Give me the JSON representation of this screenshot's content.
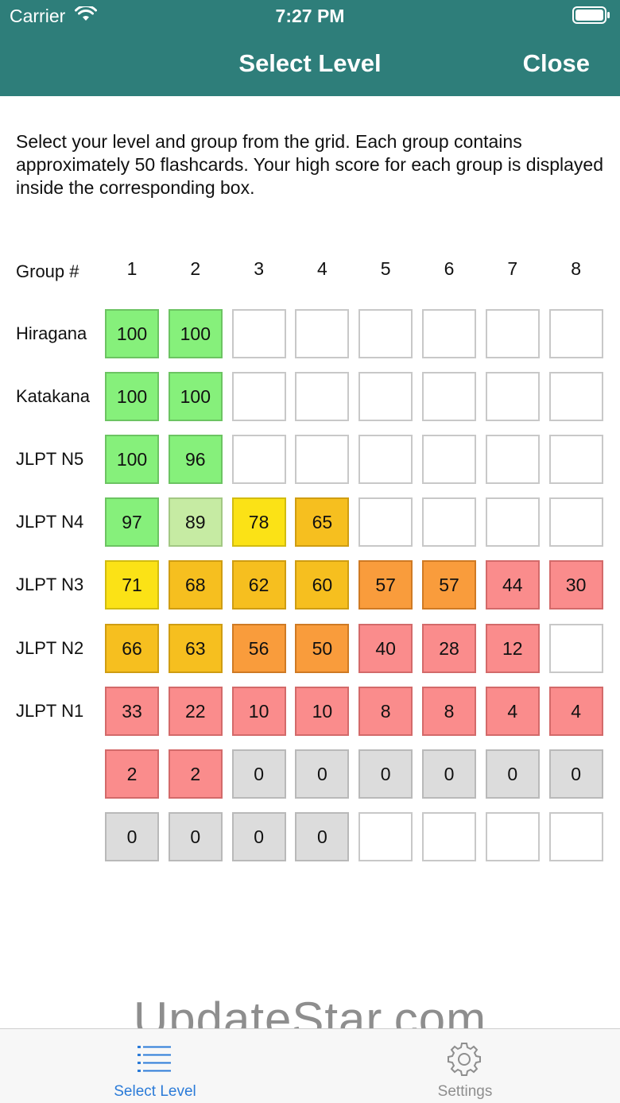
{
  "status_bar": {
    "carrier": "Carrier",
    "time": "7:27 PM"
  },
  "nav": {
    "title": "Select Level",
    "close_label": "Close"
  },
  "description": "Select your level and group from the grid. Each group contains approximately 50 flashcards. Your high score for each group is displayed inside the corresponding box.",
  "grid": {
    "header_label": "Group #",
    "columns": [
      "1",
      "2",
      "3",
      "4",
      "5",
      "6",
      "7",
      "8"
    ],
    "rows": [
      {
        "label": "Hiragana",
        "cells": [
          {
            "score": "100",
            "color": "green"
          },
          {
            "score": "100",
            "color": "green"
          },
          {
            "score": "",
            "color": "empty"
          },
          {
            "score": "",
            "color": "empty"
          },
          {
            "score": "",
            "color": "empty"
          },
          {
            "score": "",
            "color": "empty"
          },
          {
            "score": "",
            "color": "empty"
          },
          {
            "score": "",
            "color": "empty"
          }
        ]
      },
      {
        "label": "Katakana",
        "cells": [
          {
            "score": "100",
            "color": "green"
          },
          {
            "score": "100",
            "color": "green"
          },
          {
            "score": "",
            "color": "empty"
          },
          {
            "score": "",
            "color": "empty"
          },
          {
            "score": "",
            "color": "empty"
          },
          {
            "score": "",
            "color": "empty"
          },
          {
            "score": "",
            "color": "empty"
          },
          {
            "score": "",
            "color": "empty"
          }
        ]
      },
      {
        "label": "JLPT N5",
        "cells": [
          {
            "score": "100",
            "color": "green"
          },
          {
            "score": "96",
            "color": "green"
          },
          {
            "score": "",
            "color": "empty"
          },
          {
            "score": "",
            "color": "empty"
          },
          {
            "score": "",
            "color": "empty"
          },
          {
            "score": "",
            "color": "empty"
          },
          {
            "score": "",
            "color": "empty"
          },
          {
            "score": "",
            "color": "empty"
          }
        ]
      },
      {
        "label": "JLPT N4",
        "cells": [
          {
            "score": "97",
            "color": "green"
          },
          {
            "score": "89",
            "color": "lgreen"
          },
          {
            "score": "78",
            "color": "yellow"
          },
          {
            "score": "65",
            "color": "amber"
          },
          {
            "score": "",
            "color": "empty"
          },
          {
            "score": "",
            "color": "empty"
          },
          {
            "score": "",
            "color": "empty"
          },
          {
            "score": "",
            "color": "empty"
          }
        ]
      },
      {
        "label": "JLPT N3",
        "cells": [
          {
            "score": "71",
            "color": "yellow"
          },
          {
            "score": "68",
            "color": "amber"
          },
          {
            "score": "62",
            "color": "amber"
          },
          {
            "score": "60",
            "color": "amber"
          },
          {
            "score": "57",
            "color": "orange"
          },
          {
            "score": "57",
            "color": "orange"
          },
          {
            "score": "44",
            "color": "pink"
          },
          {
            "score": "30",
            "color": "pink"
          }
        ]
      },
      {
        "label": "JLPT N2",
        "cells": [
          {
            "score": "66",
            "color": "amber"
          },
          {
            "score": "63",
            "color": "amber"
          },
          {
            "score": "56",
            "color": "orange"
          },
          {
            "score": "50",
            "color": "orange"
          },
          {
            "score": "40",
            "color": "pink"
          },
          {
            "score": "28",
            "color": "pink"
          },
          {
            "score": "12",
            "color": "pink"
          },
          {
            "score": "",
            "color": "empty"
          }
        ]
      },
      {
        "label": "JLPT N1",
        "cells": [
          {
            "score": "33",
            "color": "pink"
          },
          {
            "score": "22",
            "color": "pink"
          },
          {
            "score": "10",
            "color": "pink"
          },
          {
            "score": "10",
            "color": "pink"
          },
          {
            "score": "8",
            "color": "pink"
          },
          {
            "score": "8",
            "color": "pink"
          },
          {
            "score": "4",
            "color": "pink"
          },
          {
            "score": "4",
            "color": "pink"
          }
        ]
      },
      {
        "label": "",
        "cells": [
          {
            "score": "2",
            "color": "pink"
          },
          {
            "score": "2",
            "color": "pink"
          },
          {
            "score": "0",
            "color": "gray"
          },
          {
            "score": "0",
            "color": "gray"
          },
          {
            "score": "0",
            "color": "gray"
          },
          {
            "score": "0",
            "color": "gray"
          },
          {
            "score": "0",
            "color": "gray"
          },
          {
            "score": "0",
            "color": "gray"
          }
        ]
      },
      {
        "label": "",
        "cells": [
          {
            "score": "0",
            "color": "gray"
          },
          {
            "score": "0",
            "color": "gray"
          },
          {
            "score": "0",
            "color": "gray"
          },
          {
            "score": "0",
            "color": "gray"
          },
          {
            "score": "",
            "color": "empty"
          },
          {
            "score": "",
            "color": "empty"
          },
          {
            "score": "",
            "color": "empty"
          },
          {
            "score": "",
            "color": "empty"
          }
        ]
      }
    ]
  },
  "colors": {
    "header_bg": "#2e7e7a",
    "tab_active": "#2b7bd8",
    "tab_inactive": "#8e8e8e",
    "green": "#86f07b",
    "lgreen": "#c6eba3",
    "yellow": "#fbe216",
    "amber": "#f6bf1f",
    "orange": "#f99c3c",
    "pink": "#fa8c8c",
    "gray": "#dcdcdc"
  },
  "watermark": "UpdateStar.com",
  "tabbar": {
    "tabs": [
      {
        "label": "Select Level",
        "icon": "list-icon",
        "active": true
      },
      {
        "label": "Settings",
        "icon": "gear-icon",
        "active": false
      }
    ]
  }
}
